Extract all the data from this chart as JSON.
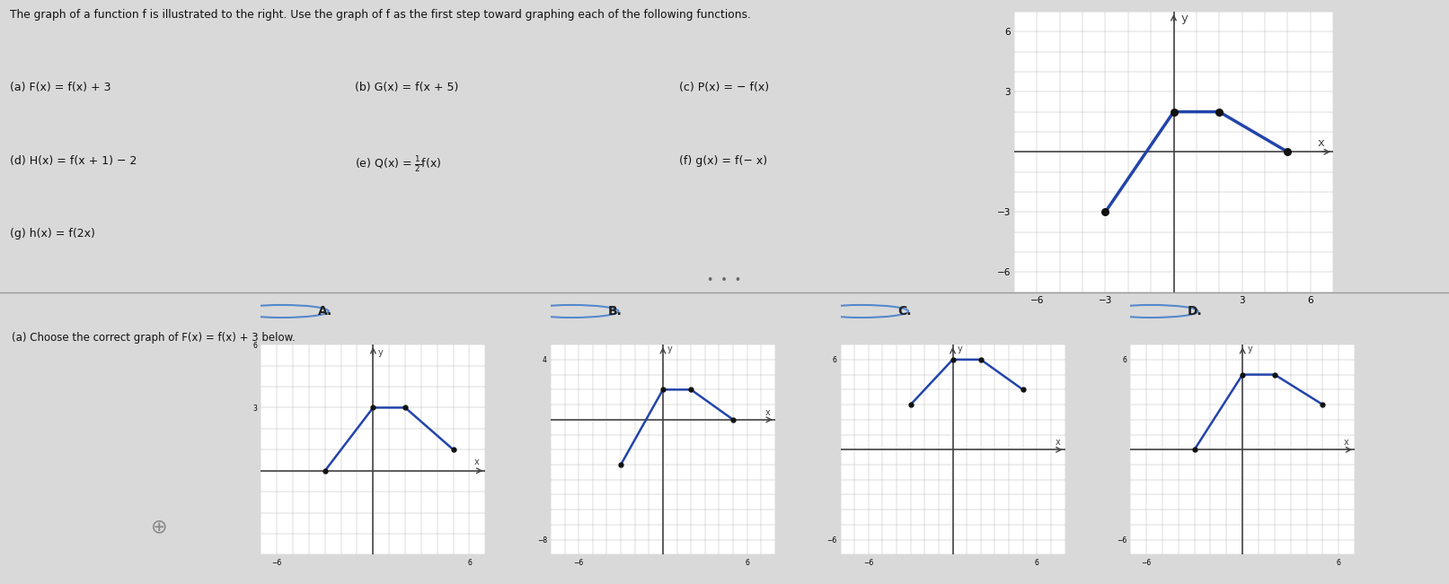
{
  "title": "The graph of a function f is illustrated to the right. Use the graph of f as the first step toward graphing each of the following functions.",
  "func_a": "(a) F(x) = f(x) + 3",
  "func_b": "(b) G(x) = f(x + 5)",
  "func_c": "(c) P(x) = − f(x)",
  "func_d": "(d) H(x) = f(x + 1) − 2",
  "func_f": "(f) g(x) = f(− x)",
  "func_g": "(g) h(x) = f(2x)",
  "question": "(a) Choose the correct graph of F(x) = f(x) + 3 below.",
  "bg_color": "#d9d9d9",
  "line_color": "#2244aa",
  "dot_color": "#111111",
  "grid_color": "#bbbbbb",
  "axis_color": "#444444",
  "main_points": [
    [
      -3,
      -3
    ],
    [
      0,
      2
    ],
    [
      2,
      2
    ],
    [
      5,
      0
    ]
  ],
  "graph_A_points": [
    [
      -3,
      0
    ],
    [
      0,
      3
    ],
    [
      2,
      3
    ],
    [
      5,
      1
    ]
  ],
  "graph_A_xlim": [
    -7,
    7
  ],
  "graph_A_ylim": [
    -4,
    6
  ],
  "graph_A_xticks": [
    -6,
    6
  ],
  "graph_A_yticks": [
    3,
    6
  ],
  "graph_B_points": [
    [
      -3,
      -3
    ],
    [
      0,
      2
    ],
    [
      2,
      2
    ],
    [
      5,
      0
    ]
  ],
  "graph_B_xlim": [
    -8,
    8
  ],
  "graph_B_ylim": [
    -9,
    5
  ],
  "graph_B_xticks": [
    -6,
    6
  ],
  "graph_B_yticks": [
    -8,
    4
  ],
  "graph_C_points": [
    [
      -3,
      3
    ],
    [
      0,
      6
    ],
    [
      2,
      6
    ],
    [
      5,
      4
    ]
  ],
  "graph_C_xlim": [
    -8,
    8
  ],
  "graph_C_ylim": [
    -7,
    7
  ],
  "graph_C_xticks": [
    -6,
    6
  ],
  "graph_C_yticks": [
    -6,
    6
  ],
  "graph_D_points": [
    [
      -3,
      0
    ],
    [
      0,
      5
    ],
    [
      2,
      5
    ],
    [
      5,
      3
    ]
  ],
  "graph_D_xlim": [
    -7,
    7
  ],
  "graph_D_ylim": [
    -7,
    7
  ],
  "graph_D_xticks": [
    -6,
    6
  ],
  "graph_D_yticks": [
    -6,
    6
  ]
}
